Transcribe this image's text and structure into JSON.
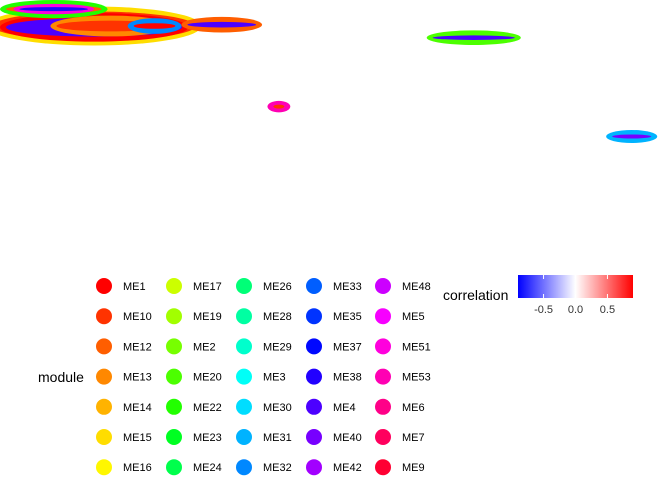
{
  "chart_data": {
    "type": "scatter",
    "title": "",
    "xlabel": "",
    "ylabel": "",
    "grid": false,
    "legend_position": "bottom",
    "module_legend": {
      "title": "module",
      "items": [
        {
          "label": "ME1",
          "color": "#ff0000"
        },
        {
          "label": "ME10",
          "color": "#ff3300"
        },
        {
          "label": "ME12",
          "color": "#ff5e00"
        },
        {
          "label": "ME13",
          "color": "#ff8800"
        },
        {
          "label": "ME14",
          "color": "#ffb300"
        },
        {
          "label": "ME15",
          "color": "#ffdd00"
        },
        {
          "label": "ME16",
          "color": "#fff700"
        },
        {
          "label": "ME17",
          "color": "#ccff00"
        },
        {
          "label": "ME19",
          "color": "#a2ff00"
        },
        {
          "label": "ME2",
          "color": "#77ff00"
        },
        {
          "label": "ME20",
          "color": "#4cff00"
        },
        {
          "label": "ME22",
          "color": "#22ff00"
        },
        {
          "label": "ME23",
          "color": "#00ff22"
        },
        {
          "label": "ME24",
          "color": "#00ff4c"
        },
        {
          "label": "ME26",
          "color": "#00ff77"
        },
        {
          "label": "ME28",
          "color": "#00ffa2"
        },
        {
          "label": "ME29",
          "color": "#00ffcc"
        },
        {
          "label": "ME3",
          "color": "#00fff7"
        },
        {
          "label": "ME30",
          "color": "#00ddff"
        },
        {
          "label": "ME31",
          "color": "#00b3ff"
        },
        {
          "label": "ME32",
          "color": "#0088ff"
        },
        {
          "label": "ME33",
          "color": "#005eff"
        },
        {
          "label": "ME35",
          "color": "#0033ff"
        },
        {
          "label": "ME37",
          "color": "#0008ff"
        },
        {
          "label": "ME38",
          "color": "#2200ff"
        },
        {
          "label": "ME4",
          "color": "#4c00ff"
        },
        {
          "label": "ME40",
          "color": "#7700ff"
        },
        {
          "label": "ME42",
          "color": "#a200ff"
        },
        {
          "label": "ME48",
          "color": "#cc00ff"
        },
        {
          "label": "ME5",
          "color": "#f700ff"
        },
        {
          "label": "ME51",
          "color": "#ff00dd"
        },
        {
          "label": "ME53",
          "color": "#ff00b3"
        },
        {
          "label": "ME6",
          "color": "#ff0088"
        },
        {
          "label": "ME7",
          "color": "#ff005e"
        },
        {
          "label": "ME9",
          "color": "#ff0033"
        }
      ]
    },
    "correlation_legend": {
      "title": "correlation",
      "low_color": "#0000ff",
      "mid_color": "#ffffff",
      "high_color": "#ff0000",
      "range": [
        -0.9,
        0.9
      ],
      "ticks": [
        {
          "value": -0.5,
          "label": "-0.5"
        },
        {
          "value": 0.0,
          "label": "0.0"
        },
        {
          "value": 0.5,
          "label": "0.5"
        }
      ]
    },
    "xlim": [
      0,
      100
    ],
    "ylim": [
      0,
      100
    ],
    "clusters": [
      {
        "x": 14,
        "y": 90,
        "rx": 16,
        "ry": 7.5,
        "module_color": "#ffdd00",
        "inner_color": "#ff3300",
        "correlation": 0.45
      },
      {
        "x": 14,
        "y": 89.5,
        "rx": 14,
        "ry": 5.5,
        "module_color": "#ff0000",
        "inner_color": "#4c00ff",
        "correlation": -0.7
      },
      {
        "x": 8,
        "y": 96.5,
        "rx": 8,
        "ry": 3.5,
        "module_color": "#22ff00",
        "inner_color": "#ff5e00",
        "correlation": 0.55
      },
      {
        "x": 8,
        "y": 96.5,
        "rx": 6,
        "ry": 2,
        "module_color": "#ff00dd",
        "inner_color": "#2200ff",
        "correlation": -0.8
      },
      {
        "x": 16.5,
        "y": 90,
        "rx": 9,
        "ry": 4,
        "module_color": "#ff8800",
        "inner_color": "#ff3300",
        "correlation": 0.6
      },
      {
        "x": 23,
        "y": 90,
        "rx": 4,
        "ry": 3,
        "module_color": "#0088ff",
        "inner_color": "#ff0000",
        "correlation": 0.5
      },
      {
        "x": 33,
        "y": 90.5,
        "rx": 6,
        "ry": 3,
        "module_color": "#ff5e00",
        "inner_color": "#4c00ff",
        "correlation": -0.6
      },
      {
        "x": 70.5,
        "y": 85.5,
        "rx": 7,
        "ry": 2.8,
        "module_color": "#4cff00",
        "inner_color": "#4c00ff",
        "correlation": -0.75
      },
      {
        "x": 41.5,
        "y": 59,
        "rx": 1.7,
        "ry": 2.2,
        "module_color": "#ff00b3",
        "inner_color": "#ff3300",
        "correlation": 0.8
      },
      {
        "x": 94,
        "y": 47.5,
        "rx": 3.8,
        "ry": 2.5,
        "module_color": "#00b3ff",
        "inner_color": "#7700ff",
        "correlation": -0.85
      }
    ]
  }
}
